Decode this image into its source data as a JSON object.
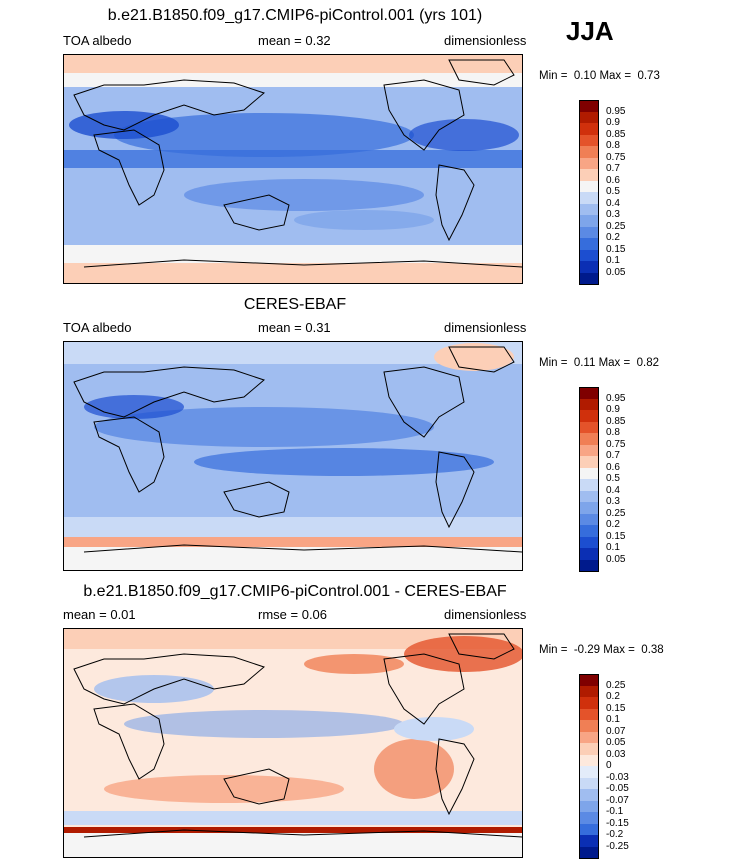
{
  "season": "JJA",
  "panels": [
    {
      "title": "b.e21.B1850.f09_g17.CMIP6-piControl.001 (yrs 101)",
      "left": "TOA albedo",
      "middle_label": "mean =",
      "middle_value": "0.32",
      "right": "dimensionless",
      "min_label": "Min =",
      "min_value": "0.10",
      "max_label": "Max =",
      "max_value": "0.73",
      "colorbar_levels": [
        "0.95",
        "0.9",
        "0.85",
        "0.8",
        "0.75",
        "0.7",
        "0.6",
        "0.5",
        "0.4",
        "0.3",
        "0.25",
        "0.2",
        "0.15",
        "0.1",
        "0.05"
      ]
    },
    {
      "title": "CERES-EBAF",
      "left": "TOA albedo",
      "middle_label": "mean =",
      "middle_value": "0.31",
      "right": "dimensionless",
      "min_label": "Min =",
      "min_value": "0.11",
      "max_label": "Max =",
      "max_value": "0.82",
      "colorbar_levels": [
        "0.95",
        "0.9",
        "0.85",
        "0.8",
        "0.75",
        "0.7",
        "0.6",
        "0.5",
        "0.4",
        "0.3",
        "0.25",
        "0.2",
        "0.15",
        "0.1",
        "0.05"
      ]
    },
    {
      "title": "b.e21.B1850.f09_g17.CMIP6-piControl.001 - CERES-EBAF",
      "left": "mean =  0.01",
      "middle_label": "rmse =",
      "middle_value": "0.06",
      "right": "dimensionless",
      "min_label": "Min =",
      "min_value": "-0.29",
      "max_label": "Max =",
      "max_value": "0.38",
      "colorbar_levels": [
        "0.25",
        "0.2",
        "0.15",
        "0.1",
        "0.07",
        "0.05",
        "0.03",
        "0",
        "-0.03",
        "-0.05",
        "-0.07",
        "-0.1",
        "-0.15",
        "-0.2",
        "-0.25"
      ]
    }
  ],
  "colors": {
    "abs_scale": [
      "#7f0000",
      "#b01b00",
      "#d0300c",
      "#e4532a",
      "#f07f55",
      "#f8a585",
      "#fccfb7",
      "#f5f5f5",
      "#c9daf6",
      "#a0bdf0",
      "#7ea5ea",
      "#5b8ae4",
      "#366ddc",
      "#1c4ed0",
      "#0b2fb4",
      "#001a8c"
    ],
    "diff_scale": [
      "#7f0000",
      "#b01b00",
      "#d0300c",
      "#e4532a",
      "#f07f55",
      "#f8a585",
      "#fccfb7",
      "#fde9dd",
      "#e3ecfa",
      "#c9daf6",
      "#a0bdf0",
      "#7ea5ea",
      "#5b8ae4",
      "#366ddc",
      "#0b2fb4",
      "#001a8c"
    ]
  }
}
